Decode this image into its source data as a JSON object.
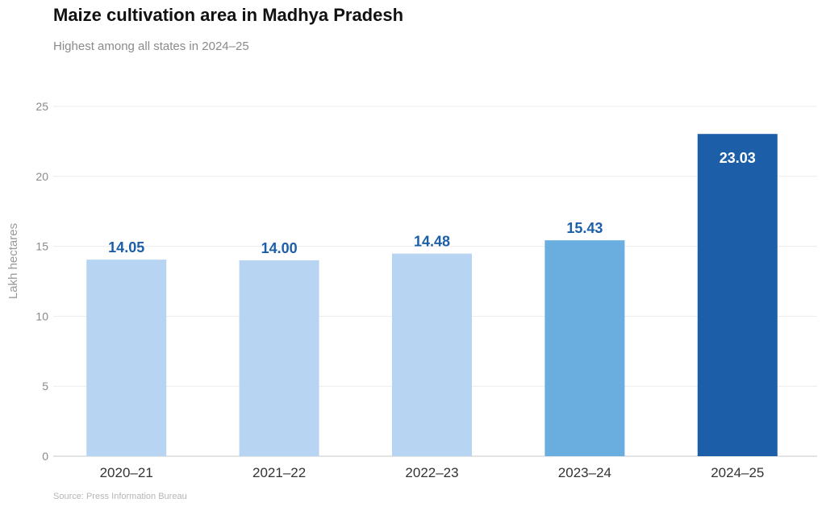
{
  "chart_data": {
    "type": "bar",
    "title": "Maize cultivation area in Madhya Pradesh",
    "subtitle": "Highest among all states in 2024–25",
    "xlabel": "",
    "ylabel": "Lakh hectares",
    "categories": [
      "2020–21",
      "2021–22",
      "2022–23",
      "2023–24",
      "2024–25"
    ],
    "values": [
      14.05,
      14.0,
      14.48,
      15.43,
      23.03
    ],
    "data_labels": [
      "14.05",
      "14.00",
      "14.48",
      "15.43",
      "23.03"
    ],
    "bar_colors": [
      "#b7d5f2",
      "#b7d5f2",
      "#b7d5f2",
      "#6aaee0",
      "#1c5fa8"
    ],
    "label_colors": [
      "#1c5fa8",
      "#1c5fa8",
      "#1c5fa8",
      "#1c5fa8",
      "#ffffff"
    ],
    "label_inside": [
      false,
      false,
      false,
      false,
      true
    ],
    "ylim": [
      0,
      25
    ],
    "yticks": [
      0,
      5,
      10,
      15,
      20,
      25
    ],
    "grid": true,
    "legend": "none",
    "source": "Source: Press Information Bureau"
  }
}
